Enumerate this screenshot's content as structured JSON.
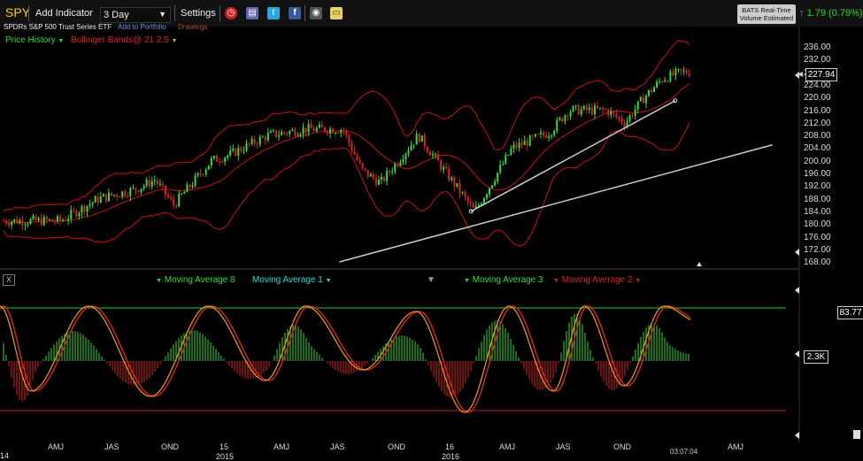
{
  "toolbar": {
    "symbol": "SPY",
    "add_indicator": "Add Indicator",
    "interval": "3 Day",
    "settings": "Settings",
    "icons": [
      "alarm-clock-icon",
      "book-icon",
      "twitter-icon",
      "facebook-icon",
      "camera-icon",
      "sticky-note-icon"
    ],
    "realtime_line1": "BATS Real-Time",
    "realtime_line2": "Volume Estimated",
    "change": "1.79 (0.79%)"
  },
  "subbar": {
    "name": "SPDRs S&P 500 Trust Series ETF",
    "add_portfolio": "Add to Portfolio",
    "drawings": "Drawings"
  },
  "legend": {
    "price_history": "Price History",
    "bollinger": "Bollinger Bands@ 21 2.5"
  },
  "price_axis": {
    "labels": [
      "236.00",
      "232.00",
      "228.00",
      "224.00",
      "220.00",
      "216.00",
      "212.00",
      "208.00",
      "204.00",
      "200.00",
      "196.00",
      "192.00",
      "188.00",
      "184.00",
      "180.00",
      "176.00",
      "172.00",
      "168.00"
    ],
    "current": "227.94"
  },
  "indicator": {
    "legend": [
      "Moving Average 8",
      "Moving Average 1",
      "Moving Average 3",
      "Moving Average 2"
    ],
    "level_label": "83.77",
    "volume_label": "2.3K",
    "close_button": "X"
  },
  "x_axis": {
    "labels": [
      "AMJ",
      "JAS",
      "OND",
      "15",
      "AMJ",
      "JAS",
      "OND",
      "16",
      "AMJ",
      "JAS",
      "OND",
      "AMJ"
    ],
    "partial_left": "14",
    "years": [
      "2015",
      "2016"
    ],
    "time": "03:07:04"
  },
  "colors": {
    "up": "#33dd33",
    "down": "#dd2222",
    "band": "#cc1111",
    "trendline": "#cccccc",
    "accent": "#ffcc00"
  },
  "chart_data": {
    "type": "candlestick",
    "ylim": [
      166,
      238
    ],
    "price_path": [
      {
        "x": "2014-04",
        "y": 181
      },
      {
        "x": "2014-06",
        "y": 188
      },
      {
        "x": "2014-08",
        "y": 191
      },
      {
        "x": "2014-09",
        "y": 194
      },
      {
        "x": "2014-10",
        "y": 186
      },
      {
        "x": "2014-12",
        "y": 200
      },
      {
        "x": "2015-01",
        "y": 202
      },
      {
        "x": "2015-03",
        "y": 208
      },
      {
        "x": "2015-05",
        "y": 210
      },
      {
        "x": "2015-07",
        "y": 210
      },
      {
        "x": "2015-08",
        "y": 197
      },
      {
        "x": "2015-09",
        "y": 193
      },
      {
        "x": "2015-11",
        "y": 208
      },
      {
        "x": "2016-01",
        "y": 192
      },
      {
        "x": "2016-02",
        "y": 184
      },
      {
        "x": "2016-04",
        "y": 204
      },
      {
        "x": "2016-06",
        "y": 209
      },
      {
        "x": "2016-07",
        "y": 216
      },
      {
        "x": "2016-09",
        "y": 216
      },
      {
        "x": "2016-10",
        "y": 212
      },
      {
        "x": "2016-11",
        "y": 220
      },
      {
        "x": "2016-12",
        "y": 226
      },
      {
        "x": "2017-01",
        "y": 228
      }
    ],
    "last_price": 227.94,
    "bollinger": {
      "period": 21,
      "stddev": 2.5
    },
    "trendlines": [
      {
        "from": {
          "x": "2016-02",
          "y": 184
        },
        "to": {
          "x": "2016-12",
          "y": 219
        }
      },
      {
        "from": {
          "x": "2015-07",
          "y": 168
        },
        "to": {
          "x": "2017-03",
          "y": 205
        }
      }
    ],
    "indicator_level": 83.77
  }
}
